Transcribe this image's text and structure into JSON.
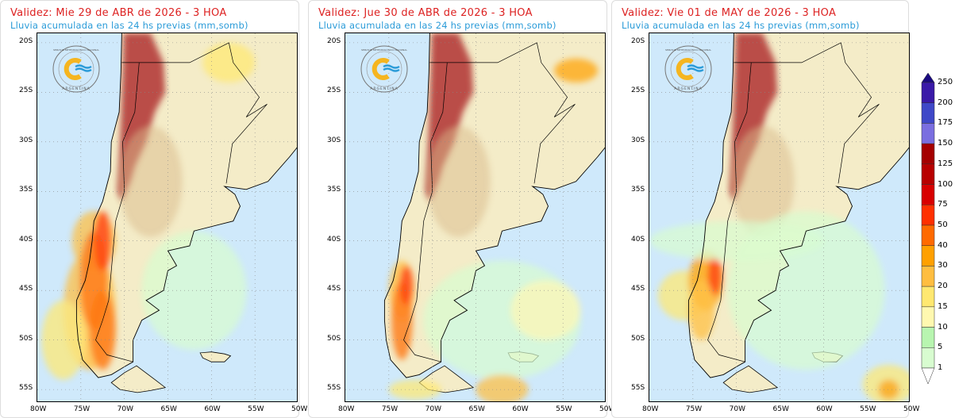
{
  "panels": [
    {
      "title": "Validez: Mie 29 de ABR de 2026 - 3 HOA",
      "subtitle": "Lluvia acumulada en las 24 hs previas (mm,somb)"
    },
    {
      "title": "Validez: Jue 30 de ABR de 2026 - 3 HOA",
      "subtitle": "Lluvia acumulada en las 24 hs previas (mm,somb)"
    },
    {
      "title": "Validez: Vie 01 de MAY de 2026 - 3 HOA",
      "subtitle": "Lluvia acumulada en las 24 hs previas (mm,somb)"
    }
  ],
  "lat_ticks": [
    "20S",
    "25S",
    "30S",
    "35S",
    "40S",
    "45S",
    "50S",
    "55S"
  ],
  "lon_ticks": [
    "80W",
    "75W",
    "70W",
    "65W",
    "60W",
    "55W",
    "50W"
  ],
  "logo": {
    "top_text": "SERVICIO METEOROLÓGICO NACIONAL",
    "bottom_text": "ARGENTINA"
  },
  "colorbar": {
    "labels": [
      "250",
      "200",
      "175",
      "150",
      "125",
      "100",
      "75",
      "50",
      "40",
      "30",
      "20",
      "15",
      "10",
      "5",
      "1"
    ],
    "colors": [
      "#3a1aa8",
      "#3f48c8",
      "#7a6ee0",
      "#a50000",
      "#b80000",
      "#d80000",
      "#ff3000",
      "#ff6a00",
      "#ffa000",
      "#ffbe40",
      "#ffe870",
      "#fff8b0",
      "#b8f5b0",
      "#d8fcd0"
    ],
    "over_color": "#1a0a80",
    "under_color": "#ffffff"
  }
}
